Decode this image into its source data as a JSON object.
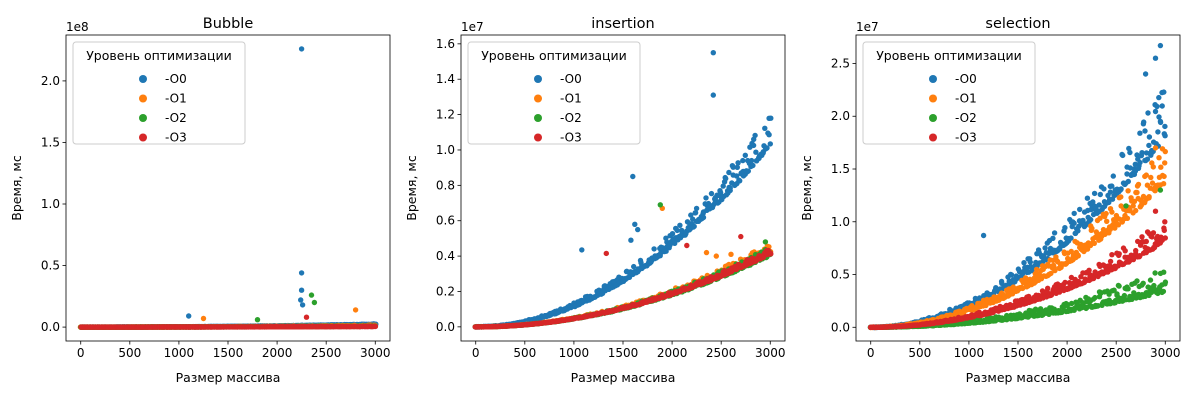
{
  "figure": {
    "xlabel": "Размер массива",
    "ylabel": "Время, мс",
    "legend_title": "Уровень оптимизации"
  },
  "colors": {
    "-O0": "#1f77b4",
    "-O1": "#ff7f0e",
    "-O2": "#2ca02c",
    "-O3": "#d62728"
  },
  "chart_data": [
    {
      "type": "scatter",
      "title": "Bubble",
      "xlabel": "Размер массива",
      "ylabel": "Время, мс",
      "xlim": [
        -150,
        3150
      ],
      "ylim": [
        -11300000,
        237300000
      ],
      "exponent_label": "1e8",
      "scale": 100000000,
      "xticks": [
        0,
        500,
        1000,
        1500,
        2000,
        2500,
        3000
      ],
      "yticks": [
        0,
        50000000,
        100000000,
        150000000,
        200000000
      ],
      "ytick_labels": [
        "0.0",
        "0.5",
        "1.0",
        "1.5",
        "2.0"
      ],
      "legend": {
        "title": "Уровень оптимизации",
        "position": "top-left"
      },
      "series": [
        {
          "name": "-O0",
          "coef": 2400000,
          "spread": 0.08,
          "outliers": [
            [
              2250,
              226000000
            ],
            [
              2250,
              44000000
            ],
            [
              2250,
              30000000
            ],
            [
              2240,
              22000000
            ],
            [
              2260,
              18000000
            ],
            [
              1100,
              9000000
            ]
          ]
        },
        {
          "name": "-O1",
          "coef": 1350000,
          "spread": 0.25,
          "outliers": [
            [
              1250,
              7000000
            ],
            [
              2800,
              14000000
            ]
          ]
        },
        {
          "name": "-O2",
          "coef": 850000,
          "spread": 0.3,
          "outliers": [
            [
              2350,
              26000000
            ],
            [
              2380,
              20000000
            ],
            [
              1800,
              6000000
            ]
          ]
        },
        {
          "name": "-O3",
          "coef": 600000,
          "spread": 0.2,
          "outliers": [
            [
              2300,
              8000000
            ]
          ]
        }
      ]
    },
    {
      "type": "scatter",
      "title": "insertion",
      "xlabel": "Размер массива",
      "ylabel": "Время, мс",
      "xlim": [
        -150,
        3150
      ],
      "ylim": [
        -800000,
        16500000
      ],
      "exponent_label": "1e7",
      "scale": 10000000,
      "xticks": [
        0,
        500,
        1000,
        1500,
        2000,
        2500,
        3000
      ],
      "yticks": [
        0,
        2000000,
        4000000,
        6000000,
        8000000,
        10000000,
        12000000,
        14000000,
        16000000
      ],
      "ytick_labels": [
        "0.0",
        "0.2",
        "0.4",
        "0.6",
        "0.8",
        "1.0",
        "1.2",
        "1.4",
        "1.6"
      ],
      "legend": {
        "title": "Уровень оптимизации",
        "position": "top-left"
      },
      "series": [
        {
          "name": "-O0",
          "coef": 11200000,
          "spread": 0.08,
          "outliers": [
            [
              2420,
              15500000
            ],
            [
              2420,
              13100000
            ],
            [
              1600,
              8500000
            ],
            [
              1080,
              4350000
            ],
            [
              1620,
              5800000
            ],
            [
              1650,
              5500000
            ],
            [
              1580,
              4900000
            ]
          ]
        },
        {
          "name": "-O1",
          "coef": 4500000,
          "spread": 0.06,
          "outliers": [
            [
              1900,
              6700000
            ],
            [
              2350,
              4200000
            ],
            [
              2450,
              4000000
            ],
            [
              2600,
              4100000
            ]
          ]
        },
        {
          "name": "-O2",
          "coef": 4300000,
          "spread": 0.06,
          "outliers": [
            [
              1880,
              6900000
            ],
            [
              2950,
              4800000
            ]
          ]
        },
        {
          "name": "-O3",
          "coef": 4300000,
          "spread": 0.04,
          "outliers": [
            [
              1330,
              4150000
            ],
            [
              2150,
              4600000
            ],
            [
              2700,
              5100000
            ]
          ]
        }
      ]
    },
    {
      "type": "scatter",
      "title": "selection",
      "xlabel": "Размер массива",
      "ylabel": "Время, мс",
      "xlim": [
        -150,
        3150
      ],
      "ylim": [
        -1300000,
        27700000
      ],
      "exponent_label": "1e7",
      "scale": 10000000,
      "xticks": [
        0,
        500,
        1000,
        1500,
        2000,
        2500,
        3000
      ],
      "yticks": [
        0,
        5000000,
        10000000,
        15000000,
        20000000,
        25000000
      ],
      "ytick_labels": [
        "0.0",
        "0.5",
        "1.0",
        "1.5",
        "2.0",
        "2.5"
      ],
      "legend": {
        "title": "Уровень оптимизации",
        "position": "top-left"
      },
      "series": [
        {
          "name": "-O0",
          "coef": 20500000,
          "spread": 0.12,
          "outliers": [
            [
              2950,
              26700000
            ],
            [
              2900,
              25500000
            ],
            [
              1150,
              8700000
            ],
            [
              2800,
              24000000
            ]
          ]
        },
        {
          "name": "-O1",
          "coef": 15500000,
          "spread": 0.12,
          "outliers": [
            [
              2900,
              17000000
            ]
          ]
        },
        {
          "name": "-O2",
          "coef": 4500000,
          "spread": 0.25,
          "outliers": [
            [
              2950,
              13000000
            ],
            [
              2600,
              11500000
            ]
          ]
        },
        {
          "name": "-O3",
          "coef": 9200000,
          "spread": 0.12,
          "outliers": [
            [
              2900,
              11000000
            ]
          ]
        }
      ]
    }
  ]
}
